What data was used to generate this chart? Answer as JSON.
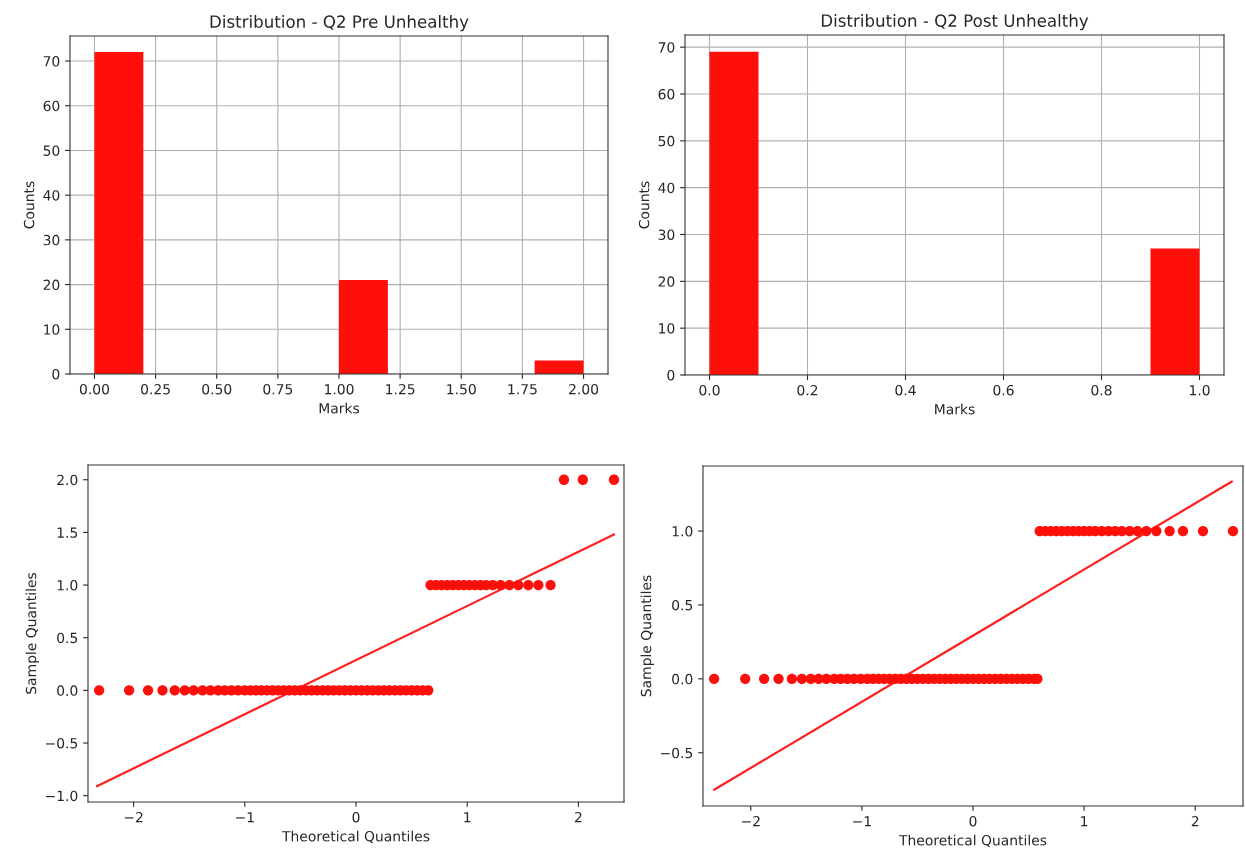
{
  "chart_data": [
    {
      "type": "histogram",
      "title": "Distribution - Q2 Pre Unhealthy",
      "xlabel": "Marks",
      "ylabel": "Counts",
      "color": "#ff0f0a",
      "bins": [
        0,
        0.2,
        0.4,
        0.6,
        0.8,
        1.0,
        1.2,
        1.4,
        1.6,
        1.8,
        2.0
      ],
      "values": [
        72,
        0,
        0,
        0,
        0,
        21,
        0,
        0,
        0,
        3
      ],
      "xlim": [
        -0.1,
        2.1
      ],
      "ylim": [
        0,
        75.6
      ],
      "xticks": [
        {
          "value": 0,
          "label": "0.00"
        },
        0.25,
        {
          "value": 0.5,
          "label": "0.50"
        },
        0.75,
        {
          "value": 1,
          "label": "1.00"
        },
        1.25,
        {
          "value": 1.5,
          "label": "1.50"
        },
        1.75,
        {
          "value": 2,
          "label": "2.00"
        }
      ],
      "yticks": [
        0,
        10,
        20,
        30,
        40,
        50,
        60,
        70
      ],
      "grid": true
    },
    {
      "type": "histogram",
      "title": "Distribution - Q2 Post Unhealthy",
      "xlabel": "Marks",
      "ylabel": "Counts",
      "color": "#ff0f0a",
      "bins": [
        0,
        0.1,
        0.2,
        0.3,
        0.4,
        0.5,
        0.6,
        0.7,
        0.8,
        0.9,
        1.0
      ],
      "values": [
        69,
        0,
        0,
        0,
        0,
        0,
        0,
        0,
        0,
        27
      ],
      "xlim": [
        -0.05,
        1.05
      ],
      "ylim": [
        0,
        72.6
      ],
      "xticks": [
        {
          "value": 0,
          "label": "0.0"
        },
        0.2,
        0.4,
        0.6,
        0.8,
        {
          "value": 1,
          "label": "1.0"
        }
      ],
      "yticks": [
        0,
        10,
        20,
        30,
        40,
        50,
        60,
        70
      ],
      "grid": true
    },
    {
      "type": "scatter",
      "xlabel": "Theoretical Quantiles",
      "ylabel": "Sample Quantiles",
      "marker": "circle",
      "grid": false,
      "xlim": [
        -2.41,
        2.41
      ],
      "ylim": [
        -1.06,
        2.14
      ],
      "xticks": [
        {
          "value": -2,
          "label": "−2"
        },
        {
          "value": -1,
          "label": "−1"
        },
        0,
        1,
        2
      ],
      "yticks": [
        {
          "value": -1,
          "label": "−1.0"
        },
        {
          "value": -0.5,
          "label": "−0.5"
        },
        {
          "value": 0,
          "label": "0.0"
        },
        0.5,
        {
          "value": 1,
          "label": "1.0"
        },
        1.5,
        {
          "value": 2,
          "label": "2.0"
        }
      ],
      "series": [
        {
          "type": "scatter",
          "color": "#ff0f0a",
          "x": [
            -2.31,
            -2.04,
            -1.87,
            -1.74,
            -1.63,
            -1.54,
            -1.46,
            -1.38,
            -1.31,
            -1.24,
            -1.18,
            -1.12,
            -1.06,
            -1.0,
            -0.95,
            -0.9,
            -0.85,
            -0.8,
            -0.75,
            -0.7,
            -0.65,
            -0.6,
            -0.55,
            -0.5,
            -0.45,
            -0.4,
            -0.35,
            -0.3,
            -0.25,
            -0.2,
            -0.15,
            -0.1,
            -0.05,
            0.0,
            0.05,
            0.1,
            0.15,
            0.2,
            0.25,
            0.3,
            0.35,
            0.4,
            0.45,
            0.5,
            0.55,
            0.6,
            0.65,
            0.67,
            0.72,
            0.77,
            0.82,
            0.87,
            0.92,
            0.97,
            1.02,
            1.07,
            1.12,
            1.17,
            1.23,
            1.3,
            1.38,
            1.46,
            1.55,
            1.64,
            1.75,
            1.87,
            2.04,
            2.32
          ],
          "values": [
            0,
            0,
            0,
            0,
            0,
            0,
            0,
            0,
            0,
            0,
            0,
            0,
            0,
            0,
            0,
            0,
            0,
            0,
            0,
            0,
            0,
            0,
            0,
            0,
            0,
            0,
            0,
            0,
            0,
            0,
            0,
            0,
            0,
            0,
            0,
            0,
            0,
            0,
            0,
            0,
            0,
            0,
            0,
            0,
            0,
            0,
            0,
            1,
            1,
            1,
            1,
            1,
            1,
            1,
            1,
            1,
            1,
            1,
            1,
            1,
            1,
            1,
            1,
            1,
            1,
            2,
            2,
            2
          ]
        },
        {
          "type": "line",
          "marker": "none",
          "color": "#ff2020",
          "x": [
            -2.33,
            2.32
          ],
          "values": [
            -0.91,
            1.48
          ]
        }
      ]
    },
    {
      "type": "scatter",
      "xlabel": "Theoretical Quantiles",
      "ylabel": "Sample Quantiles",
      "marker": "circle",
      "grid": false,
      "xlim": [
        -2.43,
        2.43
      ],
      "ylim": [
        -0.86,
        1.44
      ],
      "xticks": [
        {
          "value": -2,
          "label": "−2"
        },
        {
          "value": -1,
          "label": "−1"
        },
        0,
        1,
        2
      ],
      "yticks": [
        {
          "value": -0.5,
          "label": "−0.5"
        },
        {
          "value": 0,
          "label": "0.0"
        },
        0.5,
        {
          "value": 1,
          "label": "1.0"
        }
      ],
      "series": [
        {
          "type": "scatter",
          "color": "#ff0f0a",
          "x": [
            -2.33,
            -2.05,
            -1.88,
            -1.75,
            -1.63,
            -1.54,
            -1.46,
            -1.39,
            -1.32,
            -1.25,
            -1.19,
            -1.13,
            -1.07,
            -1.01,
            -0.95,
            -0.9,
            -0.85,
            -0.8,
            -0.75,
            -0.7,
            -0.65,
            -0.6,
            -0.55,
            -0.5,
            -0.45,
            -0.4,
            -0.35,
            -0.3,
            -0.25,
            -0.2,
            -0.15,
            -0.1,
            -0.05,
            0.0,
            0.05,
            0.1,
            0.15,
            0.2,
            0.25,
            0.3,
            0.35,
            0.4,
            0.45,
            0.5,
            0.55,
            0.58,
            0.6,
            0.65,
            0.7,
            0.75,
            0.8,
            0.85,
            0.9,
            0.95,
            1.0,
            1.05,
            1.1,
            1.16,
            1.22,
            1.28,
            1.34,
            1.41,
            1.48,
            1.56,
            1.65,
            1.77,
            1.89,
            2.07,
            2.34
          ],
          "values": [
            0,
            0,
            0,
            0,
            0,
            0,
            0,
            0,
            0,
            0,
            0,
            0,
            0,
            0,
            0,
            0,
            0,
            0,
            0,
            0,
            0,
            0,
            0,
            0,
            0,
            0,
            0,
            0,
            0,
            0,
            0,
            0,
            0,
            0,
            0,
            0,
            0,
            0,
            0,
            0,
            0,
            0,
            0,
            0,
            0,
            0,
            1,
            1,
            1,
            1,
            1,
            1,
            1,
            1,
            1,
            1,
            1,
            1,
            1,
            1,
            1,
            1,
            1,
            1,
            1,
            1,
            1,
            1,
            1
          ]
        },
        {
          "type": "line",
          "marker": "none",
          "color": "#ff2020",
          "x": [
            -2.33,
            2.33
          ],
          "values": [
            -0.75,
            1.335
          ]
        }
      ]
    }
  ]
}
